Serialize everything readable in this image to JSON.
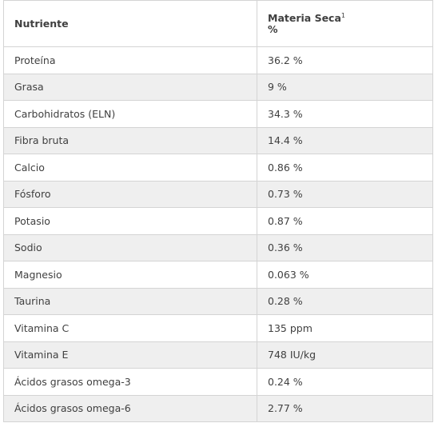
{
  "table": {
    "headers": {
      "nutrient": "Nutriente",
      "dry_matter": "Materia Seca",
      "dry_matter_sup": "1",
      "dry_matter_unit": "%"
    },
    "rows": [
      {
        "name": "Proteína",
        "value": "36.2 %"
      },
      {
        "name": "Grasa",
        "value": "9 %"
      },
      {
        "name": "Carbohidratos (ELN)",
        "value": "34.3 %"
      },
      {
        "name": "Fibra bruta",
        "value": "14.4 %"
      },
      {
        "name": "Calcio",
        "value": "0.86 %"
      },
      {
        "name": "Fósforo",
        "value": "0.73 %"
      },
      {
        "name": "Potasio",
        "value": "0.87 %"
      },
      {
        "name": "Sodio",
        "value": "0.36 %"
      },
      {
        "name": "Magnesio",
        "value": "0.063 %"
      },
      {
        "name": "Taurina",
        "value": "0.28 %"
      },
      {
        "name": "Vitamina C",
        "value": "135 ppm"
      },
      {
        "name": "Vitamina E",
        "value": "748 IU/kg"
      },
      {
        "name": "Ácidos grasos omega-3",
        "value": "0.24 %"
      },
      {
        "name": "Ácidos grasos omega-6",
        "value": "2.77 %"
      }
    ]
  }
}
